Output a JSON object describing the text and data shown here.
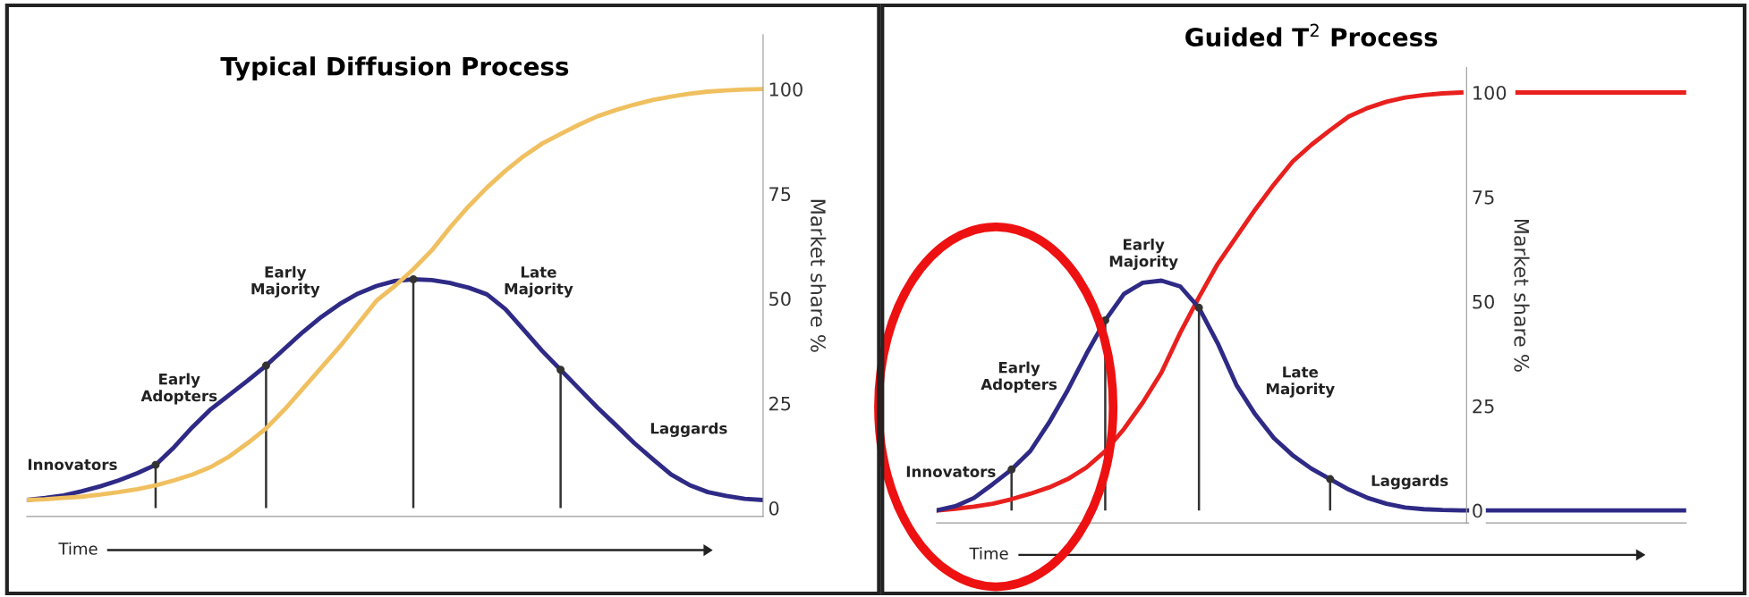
{
  "chart_data": [
    {
      "type": "line",
      "title": "Typical Diffusion Process",
      "xlabel": "Time",
      "ylabel": "Market share %",
      "categories": [
        null,
        null,
        null,
        null,
        null,
        null,
        null,
        null,
        null,
        null,
        null,
        null,
        null,
        null,
        null,
        null,
        null,
        null,
        null,
        null,
        null,
        null,
        null,
        null,
        null,
        null,
        null,
        null,
        null,
        null,
        null,
        null,
        null,
        null,
        null,
        null,
        null,
        null,
        null,
        null,
        null
      ],
      "ylim": [
        -2,
        113
      ],
      "yticks": [
        0,
        25,
        50,
        75,
        100
      ],
      "tick_labels": "y",
      "line_style": "solid",
      "series": [
        {
          "color": "#2e2a85",
          "values": [
            1.9,
            2.4,
            3.0,
            4.0,
            5.2,
            6.6,
            8.3,
            10.3,
            14.5,
            19.3,
            23.6,
            27.0,
            30.4,
            34.0,
            38.0,
            42.0,
            45.6,
            48.7,
            51.2,
            53.0,
            54.2,
            54.6,
            54.4,
            53.7,
            52.6,
            51.0,
            47.5,
            42.5,
            37.5,
            33.0,
            28.5,
            24.0,
            19.8,
            15.5,
            11.7,
            8.0,
            5.5,
            3.8,
            2.9,
            2.2,
            1.9
          ]
        },
        {
          "color": "#f0c060",
          "values": [
            1.9,
            2.1,
            2.4,
            2.7,
            3.2,
            3.8,
            4.5,
            5.4,
            6.6,
            8.0,
            9.8,
            12.3,
            15.5,
            19.0,
            23.5,
            28.5,
            33.5,
            38.5,
            44.0,
            49.5,
            53.0,
            57.0,
            61.5,
            67.0,
            72.0,
            76.5,
            80.5,
            84.0,
            87.0,
            89.3,
            91.5,
            93.5,
            95.0,
            96.3,
            97.4,
            98.2,
            98.9,
            99.4,
            99.7,
            99.9,
            100
          ]
        },
        {
          "type": "lollipop",
          "color": "#333333",
          "marker": "circle",
          "values": [
            null,
            null,
            null,
            null,
            null,
            null,
            null,
            10.3,
            null,
            null,
            null,
            null,
            null,
            34.0,
            null,
            null,
            null,
            null,
            null,
            null,
            null,
            54.6,
            null,
            null,
            null,
            null,
            null,
            null,
            null,
            33.0,
            null,
            null,
            null,
            null,
            null,
            null,
            null,
            null,
            null,
            null,
            null
          ]
        }
      ],
      "annotations": [
        "Innovators",
        "Early\nAdopters",
        "Early\nMajority",
        "Late\nMajority",
        "Laggards"
      ]
    },
    {
      "type": "line",
      "title": "Guided T$^{2}$ Process",
      "xlabel": "Time",
      "ylabel": "Market share %",
      "categories": [
        null,
        null,
        null,
        null,
        null,
        null,
        null,
        null,
        null,
        null,
        null,
        null,
        null,
        null,
        null,
        null,
        null,
        null,
        null,
        null,
        null,
        null,
        null,
        null,
        null,
        null,
        null,
        null,
        null,
        null,
        null,
        null,
        null,
        null,
        null,
        null,
        null,
        null,
        null,
        null,
        null
      ],
      "ylim": [
        -3,
        106
      ],
      "yticks": [
        0,
        25,
        50,
        75,
        100
      ],
      "tick_labels": "y",
      "line_style": "solid",
      "series": [
        {
          "color": "#e8201e",
          "values": [
            0,
            0.4,
            0.9,
            1.6,
            2.7,
            4.0,
            5.5,
            7.5,
            10.3,
            14.2,
            19.5,
            25.8,
            33.0,
            42.5,
            51.0,
            59.0,
            65.5,
            72.0,
            78.0,
            83.5,
            87.5,
            91.0,
            94.3,
            96.3,
            97.8,
            98.8,
            99.4,
            99.8,
            100,
            null,
            null,
            100,
            100,
            100,
            100,
            100,
            100,
            100,
            100,
            100,
            100
          ]
        },
        {
          "color": "#2e2a85",
          "values": [
            0,
            1.0,
            3.0,
            6.3,
            9.8,
            14.2,
            21.0,
            28.8,
            37.5,
            45.5,
            51.8,
            54.5,
            55.0,
            53.6,
            48.5,
            40.0,
            30.0,
            23.0,
            17.3,
            13.2,
            10.0,
            7.5,
            5.0,
            3.0,
            1.6,
            0.7,
            0.3,
            0.1,
            0,
            0,
            0,
            0,
            0,
            0,
            0,
            0,
            0,
            0,
            0,
            0,
            0
          ]
        },
        {
          "type": "lollipop",
          "color": "#333333",
          "marker": "circle",
          "values": [
            null,
            null,
            null,
            null,
            9.8,
            null,
            null,
            null,
            null,
            45.5,
            null,
            null,
            null,
            null,
            48.5,
            null,
            null,
            null,
            null,
            null,
            null,
            7.5,
            null,
            null,
            null,
            null,
            null,
            null,
            null,
            null,
            null,
            null,
            null,
            null,
            null,
            null,
            null,
            null,
            null,
            null,
            null
          ]
        }
      ],
      "annotations": [
        "Innovators",
        "Early\nAdopters",
        "Early\nMajority",
        "Late\nMajority",
        "Laggards"
      ]
    }
  ]
}
